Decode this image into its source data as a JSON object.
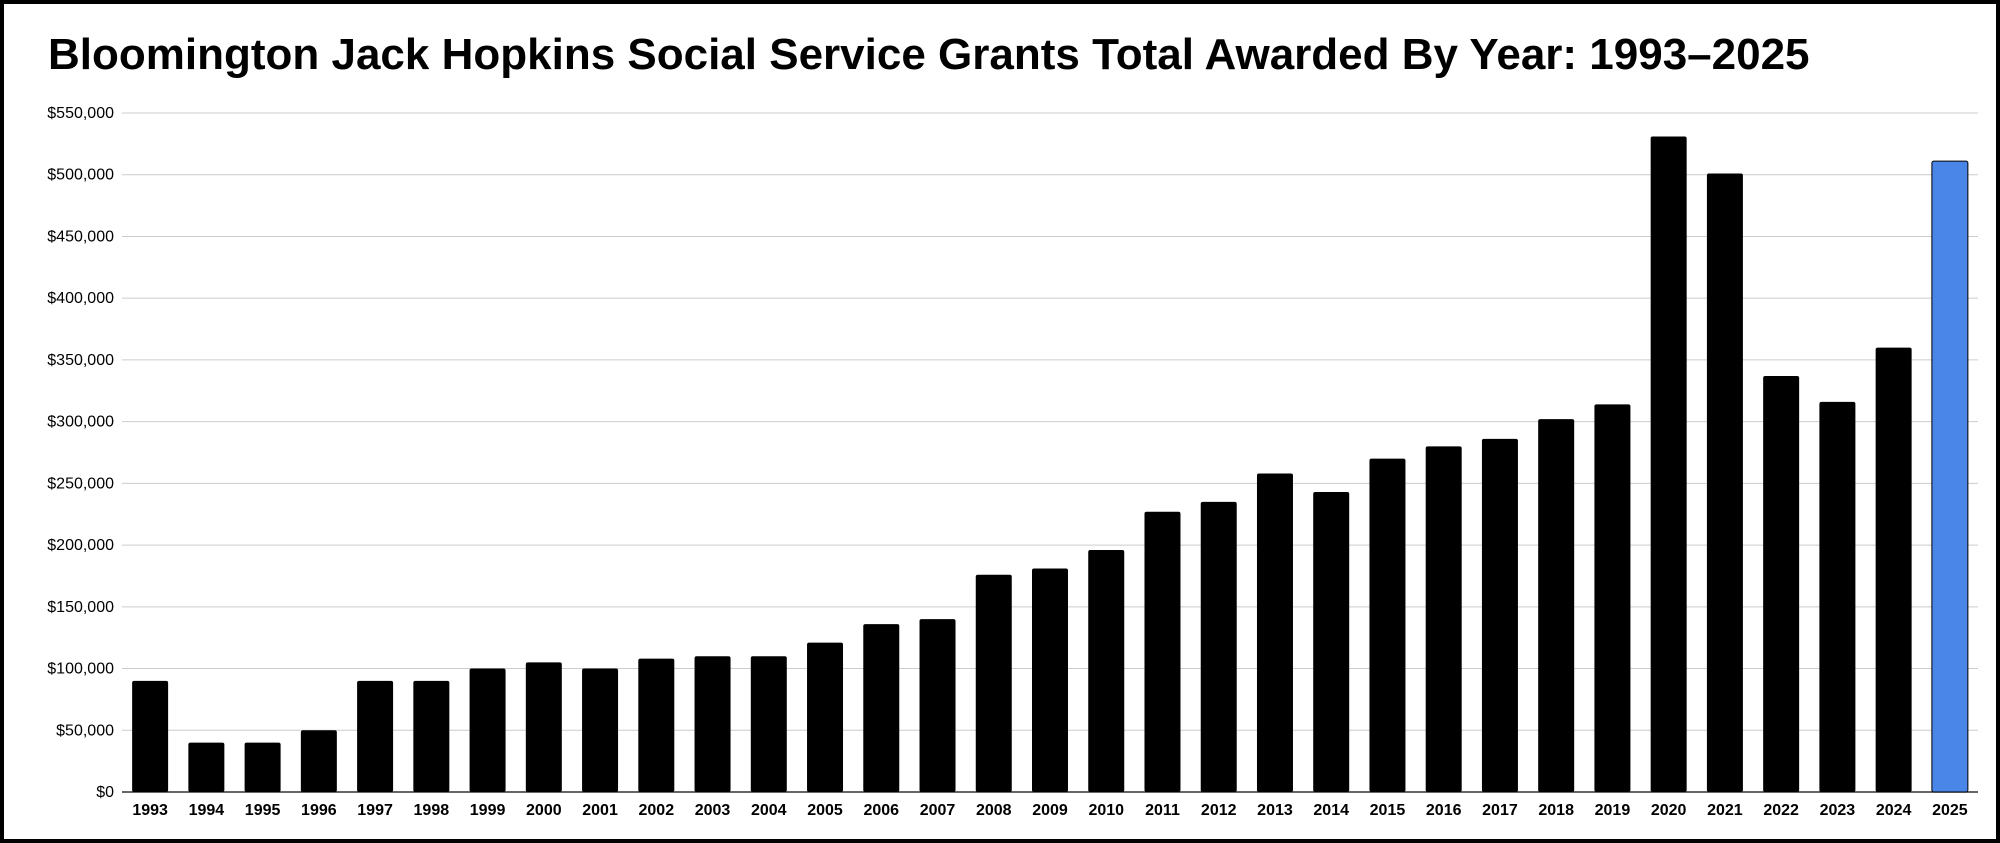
{
  "chart_data": {
    "type": "bar",
    "title": "Bloomington Jack Hopkins Social Service Grants Total Awarded By Year: 1993–2025",
    "xlabel": "",
    "ylabel": "",
    "ylim": [
      0,
      550000
    ],
    "y_ticks": [
      0,
      50000,
      100000,
      150000,
      200000,
      250000,
      300000,
      350000,
      400000,
      450000,
      500000,
      550000
    ],
    "y_tick_labels": [
      "$0",
      "$50,000",
      "$100,000",
      "$150,000",
      "$200,000",
      "$250,000",
      "$300,000",
      "$350,000",
      "$400,000",
      "$450,000",
      "$500,000",
      "$550,000"
    ],
    "grid": true,
    "legend": "none",
    "categories": [
      "1993",
      "1994",
      "1995",
      "1996",
      "1997",
      "1998",
      "1999",
      "2000",
      "2001",
      "2002",
      "2003",
      "2004",
      "2005",
      "2006",
      "2007",
      "2008",
      "2009",
      "2010",
      "2011",
      "2012",
      "2013",
      "2014",
      "2015",
      "2016",
      "2017",
      "2018",
      "2019",
      "2020",
      "2021",
      "2022",
      "2023",
      "2024",
      "2025"
    ],
    "values": [
      90000,
      40000,
      40000,
      50000,
      90000,
      90000,
      100000,
      105000,
      100000,
      108000,
      110000,
      110000,
      121000,
      136000,
      140000,
      176000,
      181000,
      196000,
      227000,
      235000,
      258000,
      243000,
      270000,
      280000,
      286000,
      302000,
      314000,
      531000,
      501000,
      337000,
      316000,
      360000,
      511000
    ],
    "bar_color": "#000000",
    "highlight": {
      "category": "2025",
      "color": "#4a86e8"
    },
    "gridline_color": "#cccccc"
  }
}
